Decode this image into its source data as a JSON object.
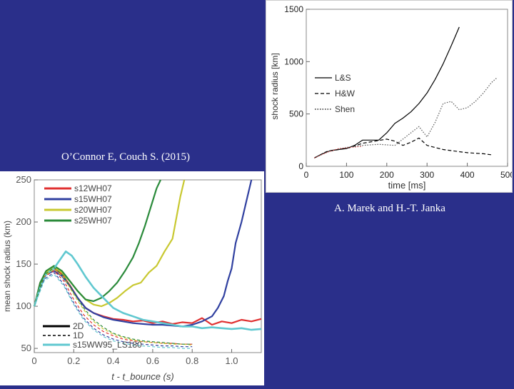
{
  "captions": {
    "left": "O’Connor E, Couch S. (2015)",
    "right": "A. Marek and H.-T. Janka"
  },
  "chart_data": [
    {
      "type": "line",
      "title": "",
      "xlabel": "t - t_bounce (s)",
      "ylabel": "mean shock radius (km)",
      "xlim": [
        0,
        1.15
      ],
      "ylim": [
        45,
        250
      ],
      "xticks": [
        "0",
        "0.2",
        "0.4",
        "0.6",
        "0.8",
        "1.0"
      ],
      "xtick_values": [
        0,
        0.2,
        0.4,
        0.6,
        0.8,
        1.0
      ],
      "yticks": [
        "50",
        "100",
        "150",
        "200",
        "250"
      ],
      "ytick_values": [
        50,
        100,
        150,
        200,
        250
      ],
      "legend_top": [
        {
          "name": "s12WH07",
          "color": "#e03030"
        },
        {
          "name": "s15WH07",
          "color": "#3040a0"
        },
        {
          "name": "s20WH07",
          "color": "#c8c830"
        },
        {
          "name": "s25WH07",
          "color": "#2a8a3a"
        }
      ],
      "legend_bottom": [
        {
          "name": "2D",
          "color": "#000000",
          "style": "solid"
        },
        {
          "name": "1D",
          "color": "#000000",
          "style": "dashed"
        },
        {
          "name": "s15WW95_LS180",
          "color": "#60c8d0",
          "style": "solid"
        }
      ],
      "series": [
        {
          "name": "s12WH07",
          "color": "#e03030",
          "width": 2.2,
          "x": [
            0,
            0.03,
            0.06,
            0.1,
            0.14,
            0.18,
            0.22,
            0.26,
            0.3,
            0.35,
            0.4,
            0.45,
            0.5,
            0.55,
            0.6,
            0.65,
            0.7,
            0.75,
            0.8,
            0.85,
            0.9,
            0.95,
            1.0,
            1.05,
            1.1,
            1.15
          ],
          "y": [
            100,
            128,
            140,
            145,
            138,
            125,
            110,
            98,
            92,
            88,
            85,
            84,
            82,
            83,
            80,
            82,
            79,
            81,
            80,
            86,
            78,
            82,
            80,
            84,
            82,
            85
          ]
        },
        {
          "name": "s15WH07",
          "color": "#3040a0",
          "width": 2.2,
          "x": [
            0,
            0.03,
            0.06,
            0.1,
            0.14,
            0.18,
            0.22,
            0.26,
            0.3,
            0.35,
            0.4,
            0.45,
            0.5,
            0.55,
            0.6,
            0.65,
            0.7,
            0.75,
            0.8,
            0.85,
            0.9,
            0.93,
            0.96,
            0.98,
            1.0,
            1.02,
            1.05,
            1.08,
            1.1
          ],
          "y": [
            100,
            126,
            138,
            142,
            136,
            124,
            110,
            98,
            92,
            87,
            84,
            82,
            80,
            79,
            78,
            78,
            77,
            76,
            78,
            82,
            88,
            98,
            112,
            130,
            145,
            175,
            200,
            230,
            250
          ]
        },
        {
          "name": "s20WH07",
          "color": "#c8c830",
          "width": 2.2,
          "x": [
            0,
            0.03,
            0.06,
            0.1,
            0.14,
            0.18,
            0.22,
            0.26,
            0.3,
            0.34,
            0.38,
            0.42,
            0.46,
            0.5,
            0.54,
            0.58,
            0.62,
            0.66,
            0.7,
            0.72,
            0.74,
            0.76
          ],
          "y": [
            100,
            127,
            140,
            146,
            140,
            130,
            118,
            108,
            102,
            100,
            104,
            110,
            118,
            125,
            128,
            140,
            148,
            165,
            180,
            205,
            230,
            250
          ]
        },
        {
          "name": "s25WH07",
          "color": "#2a8a3a",
          "width": 2.2,
          "x": [
            0,
            0.03,
            0.06,
            0.1,
            0.14,
            0.18,
            0.22,
            0.26,
            0.3,
            0.34,
            0.38,
            0.42,
            0.46,
            0.5,
            0.53,
            0.56,
            0.58,
            0.6,
            0.62,
            0.64
          ],
          "y": [
            100,
            128,
            142,
            148,
            142,
            130,
            118,
            108,
            106,
            110,
            118,
            128,
            142,
            158,
            175,
            195,
            210,
            225,
            240,
            250
          ]
        },
        {
          "name": "s15WW95_LS180",
          "color": "#60c8d0",
          "width": 2.6,
          "x": [
            0,
            0.03,
            0.06,
            0.1,
            0.13,
            0.16,
            0.19,
            0.22,
            0.26,
            0.3,
            0.35,
            0.4,
            0.45,
            0.5,
            0.55,
            0.6,
            0.65,
            0.7,
            0.75,
            0.8,
            0.85,
            0.9,
            0.95,
            1.0,
            1.05,
            1.1,
            1.15
          ],
          "y": [
            100,
            122,
            138,
            145,
            155,
            165,
            160,
            150,
            135,
            122,
            110,
            98,
            92,
            88,
            84,
            82,
            80,
            78,
            76,
            76,
            74,
            75,
            74,
            73,
            74,
            72,
            73
          ]
        },
        {
          "name": "s12WH07 1D",
          "color": "#e03030",
          "width": 1.2,
          "dash": "4,3",
          "x": [
            0,
            0.05,
            0.1,
            0.15,
            0.2,
            0.25,
            0.3,
            0.35,
            0.4,
            0.45,
            0.5,
            0.55,
            0.6,
            0.65,
            0.7,
            0.75,
            0.8
          ],
          "y": [
            100,
            135,
            142,
            130,
            108,
            90,
            78,
            70,
            65,
            61,
            59,
            58,
            57,
            56,
            56,
            55,
            55
          ]
        },
        {
          "name": "s15WH07 1D",
          "color": "#3040a0",
          "width": 1.2,
          "dash": "4,3",
          "x": [
            0,
            0.05,
            0.1,
            0.15,
            0.2,
            0.25,
            0.3,
            0.35,
            0.4,
            0.45,
            0.5,
            0.55,
            0.6,
            0.65,
            0.7,
            0.75,
            0.8
          ],
          "y": [
            100,
            132,
            140,
            126,
            104,
            86,
            74,
            66,
            61,
            58,
            56,
            55,
            54,
            53,
            53,
            52,
            52
          ]
        },
        {
          "name": "s20WH07 1D",
          "color": "#c8c830",
          "width": 1.2,
          "dash": "4,3",
          "x": [
            0,
            0.05,
            0.1,
            0.15,
            0.2,
            0.25,
            0.3,
            0.35,
            0.4,
            0.45,
            0.5,
            0.55,
            0.6,
            0.65,
            0.7,
            0.75,
            0.8
          ],
          "y": [
            100,
            136,
            144,
            134,
            114,
            96,
            82,
            73,
            67,
            63,
            60,
            58,
            57,
            56,
            55,
            55,
            54
          ]
        },
        {
          "name": "s25WH07 1D",
          "color": "#2a8a3a",
          "width": 1.2,
          "dash": "4,3",
          "x": [
            0,
            0.05,
            0.1,
            0.15,
            0.2,
            0.25,
            0.3,
            0.35,
            0.4,
            0.45,
            0.5,
            0.55,
            0.6,
            0.65,
            0.7,
            0.75,
            0.8
          ],
          "y": [
            100,
            137,
            146,
            136,
            116,
            98,
            84,
            75,
            68,
            64,
            61,
            59,
            58,
            57,
            56,
            55,
            55
          ]
        },
        {
          "name": "s15WW95_LS180 1D",
          "color": "#60c8d0",
          "width": 1.2,
          "dash": "4,3",
          "x": [
            0,
            0.05,
            0.1,
            0.15,
            0.2,
            0.25,
            0.3,
            0.35,
            0.4,
            0.45,
            0.5,
            0.55,
            0.6,
            0.65,
            0.7,
            0.75,
            0.8
          ],
          "y": [
            100,
            130,
            138,
            124,
            102,
            84,
            72,
            64,
            59,
            56,
            54,
            53,
            52,
            51,
            51,
            50,
            50
          ]
        }
      ]
    },
    {
      "type": "line",
      "title": "",
      "xlabel": "time [ms]",
      "ylabel": "shock radius [km]",
      "xlim": [
        0,
        500
      ],
      "ylim": [
        0,
        1500
      ],
      "xticks": [
        "0",
        "100",
        "200",
        "300",
        "400",
        "500"
      ],
      "xtick_values": [
        0,
        100,
        200,
        300,
        400,
        500
      ],
      "yticks": [
        "0",
        "500",
        "1000",
        "1500"
      ],
      "ytick_values": [
        0,
        500,
        1000,
        1500
      ],
      "legend": [
        {
          "name": "L&S",
          "style": "solid"
        },
        {
          "name": "H&W",
          "style": "dashed"
        },
        {
          "name": "Shen",
          "style": "dotted"
        }
      ],
      "series": [
        {
          "name": "L&S",
          "color": "#000000",
          "width": 1.2,
          "x": [
            20,
            40,
            60,
            80,
            100,
            120,
            140,
            160,
            180,
            200,
            220,
            240,
            260,
            280,
            300,
            320,
            340,
            360,
            380
          ],
          "y": [
            80,
            120,
            150,
            160,
            170,
            200,
            250,
            250,
            250,
            320,
            410,
            460,
            520,
            600,
            700,
            830,
            980,
            1150,
            1330
          ]
        },
        {
          "name": "H&W",
          "color": "#000000",
          "width": 1.2,
          "dash": "5,3",
          "x": [
            20,
            50,
            80,
            110,
            140,
            170,
            200,
            220,
            240,
            260,
            280,
            300,
            320,
            340,
            360,
            380,
            400,
            420,
            440,
            460
          ],
          "y": [
            80,
            140,
            160,
            180,
            220,
            240,
            260,
            240,
            200,
            230,
            270,
            200,
            180,
            160,
            150,
            140,
            130,
            125,
            120,
            110
          ]
        },
        {
          "name": "Shen",
          "color": "#555555",
          "width": 1.2,
          "dash": "1.5,2",
          "x": [
            20,
            60,
            100,
            140,
            180,
            220,
            240,
            260,
            280,
            300,
            320,
            340,
            360,
            380,
            400,
            420,
            440,
            460,
            475
          ],
          "y": [
            80,
            150,
            180,
            200,
            210,
            200,
            260,
            320,
            380,
            280,
            420,
            600,
            620,
            540,
            560,
            620,
            700,
            800,
            850
          ]
        },
        {
          "name": "red",
          "color": "#e03030",
          "width": 0.9,
          "dash": "1.5,2",
          "x": [
            20,
            50,
            80,
            110,
            140
          ],
          "y": [
            80,
            130,
            170,
            180,
            190
          ]
        }
      ]
    }
  ]
}
